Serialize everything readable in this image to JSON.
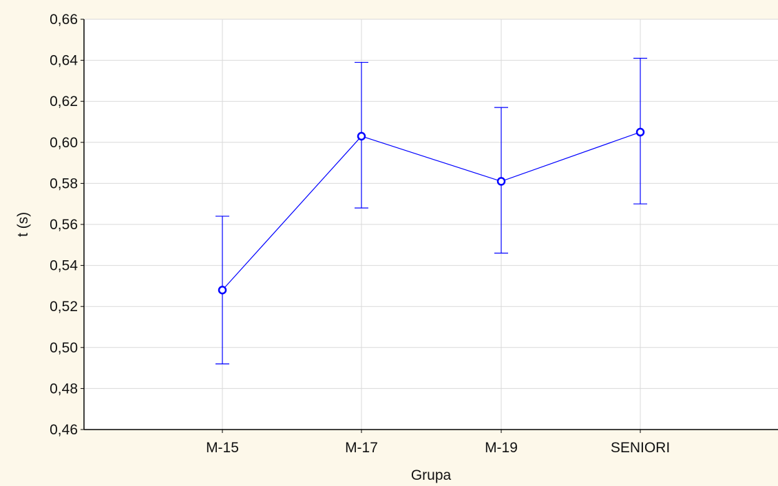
{
  "colors": {
    "page_background": "#fdf8ea",
    "plot_background": "#ffffff",
    "grid": "#d9d9d9",
    "axis": "#000000",
    "series": "#0000ff"
  },
  "chart_data": {
    "type": "line",
    "title": "",
    "xlabel": "Grupa",
    "ylabel": "t (s)",
    "categories": [
      "M-15",
      "M-17",
      "M-19",
      "SENIORI"
    ],
    "series": [
      {
        "values": [
          0.528,
          0.603,
          0.581,
          0.605
        ],
        "error_low": [
          0.492,
          0.568,
          0.546,
          0.57
        ],
        "error_high": [
          0.564,
          0.639,
          0.617,
          0.641
        ]
      }
    ],
    "ylim": [
      0.46,
      0.66
    ],
    "y_ticks": [
      0.46,
      0.48,
      0.5,
      0.52,
      0.54,
      0.56,
      0.58,
      0.6,
      0.62,
      0.64,
      0.66
    ],
    "y_tick_labels": [
      "0,46",
      "0,48",
      "0,50",
      "0,52",
      "0,54",
      "0,56",
      "0,58",
      "0,60",
      "0,62",
      "0,64",
      "0,66"
    ],
    "grid": true,
    "legend": "none"
  }
}
